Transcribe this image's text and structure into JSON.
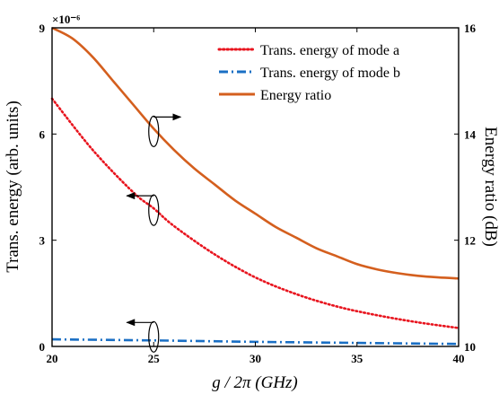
{
  "chart_data": {
    "type": "line",
    "title": "",
    "xlabel": "g / 2π (GHz)",
    "ylabel_left": "Trans. energy (arb. units)",
    "ylabel_right": "Energy ratio (dB)",
    "y_left_multiplier": "×10⁻⁶",
    "xlim": [
      20,
      40
    ],
    "ylim_left": [
      0,
      9
    ],
    "ylim_right": [
      10,
      16
    ],
    "x_ticks": [
      "20",
      "25",
      "30",
      "35",
      "40"
    ],
    "y_left_ticks": [
      "0",
      "3",
      "6",
      "9"
    ],
    "y_right_ticks": [
      "10",
      "12",
      "14",
      "16"
    ],
    "grid": false,
    "legend_position": "top-right",
    "series": [
      {
        "name": "Trans. energy of mode a",
        "axis": "left",
        "color": "#e8141e",
        "style": "dotted",
        "x": [
          20,
          22,
          24,
          25,
          26,
          28,
          30,
          32,
          34,
          36,
          38,
          40
        ],
        "y": [
          7.0,
          5.55,
          4.35,
          3.9,
          3.4,
          2.6,
          1.95,
          1.48,
          1.13,
          0.88,
          0.68,
          0.52
        ]
      },
      {
        "name": "Trans. energy of mode b",
        "axis": "left",
        "color": "#1a6fc4",
        "style": "dashdot",
        "x": [
          20,
          25,
          30,
          35,
          40
        ],
        "y": [
          0.2,
          0.17,
          0.13,
          0.1,
          0.07
        ]
      },
      {
        "name": "Energy ratio",
        "axis": "right",
        "color": "#d45f1e",
        "style": "solid",
        "x": [
          20,
          21,
          22,
          23,
          24,
          25,
          26,
          27,
          28,
          29,
          30,
          31,
          32,
          33,
          34,
          35,
          36,
          37,
          38,
          39,
          40
        ],
        "y": [
          16.0,
          15.8,
          15.45,
          15.0,
          14.55,
          14.1,
          13.7,
          13.35,
          13.05,
          12.75,
          12.5,
          12.25,
          12.05,
          11.85,
          11.7,
          11.55,
          11.45,
          11.38,
          11.33,
          11.3,
          11.28
        ]
      }
    ]
  },
  "colors": {
    "axis": "#000000",
    "background": "#ffffff"
  }
}
